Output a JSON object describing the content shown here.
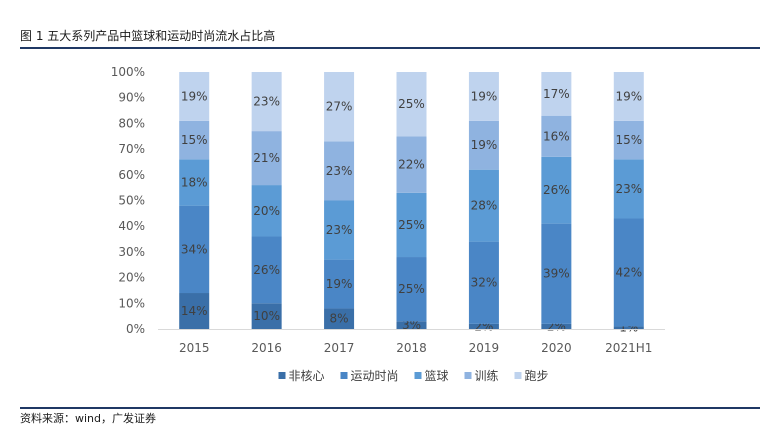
{
  "title": "图 1  五大系列产品中篮球和运动时尚流水占比高",
  "source": "资料来源：wind，广发证券",
  "chart_data": {
    "type": "bar",
    "stacked": true,
    "categories": [
      "2015",
      "2016",
      "2017",
      "2018",
      "2019",
      "2020",
      "2021H1"
    ],
    "ylim": [
      0,
      100
    ],
    "yticks": [
      "0%",
      "10%",
      "20%",
      "30%",
      "40%",
      "50%",
      "60%",
      "70%",
      "80%",
      "90%",
      "100%"
    ],
    "grid": false,
    "legend_position": "bottom",
    "series": [
      {
        "name": "非核心",
        "color": "#3a6fa8",
        "values": [
          14,
          10,
          8,
          3,
          2,
          2,
          1
        ]
      },
      {
        "name": "运动时尚",
        "color": "#4a86c6",
        "values": [
          34,
          26,
          19,
          25,
          32,
          39,
          42
        ]
      },
      {
        "name": "篮球",
        "color": "#5b9bd5",
        "values": [
          18,
          20,
          23,
          25,
          28,
          26,
          23
        ]
      },
      {
        "name": "训练",
        "color": "#8fb3e0",
        "values": [
          15,
          21,
          23,
          22,
          19,
          16,
          15
        ]
      },
      {
        "name": "跑步",
        "color": "#bfd3ee",
        "values": [
          19,
          23,
          27,
          25,
          19,
          17,
          19
        ]
      }
    ]
  }
}
